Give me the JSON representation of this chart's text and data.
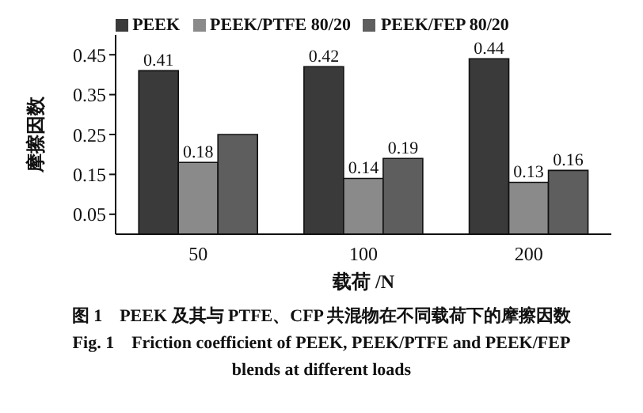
{
  "chart_data": {
    "type": "bar",
    "xlabel": "载荷 /N",
    "ylabel": "摩擦因数",
    "categories": [
      "50",
      "100",
      "200"
    ],
    "series": [
      {
        "name": "PEEK",
        "color": "#3a3a3a",
        "values": [
          0.41,
          0.42,
          0.44
        ],
        "value_labels": [
          "0.41",
          "0.42",
          "0.44"
        ]
      },
      {
        "name": "PEEK/PTFE 80/20",
        "color": "#8a8a8a",
        "values": [
          0.18,
          0.14,
          0.13
        ],
        "value_labels": [
          "0.18",
          "0.14",
          "0.13"
        ]
      },
      {
        "name": "PEEK/FEP 80/20",
        "color": "#5e5e5e",
        "values": [
          0.25,
          0.19,
          0.16
        ],
        "value_labels": [
          null,
          "0.19",
          "0.16"
        ]
      }
    ],
    "ylim": [
      0,
      0.5
    ],
    "yticks": [
      0.05,
      0.15,
      0.25,
      0.35,
      0.45
    ],
    "grid": false,
    "legend": "top",
    "annotations": [
      "图 1　PEEK 及其与 PTFE、CFP 共混物在不同载荷下的摩擦因数",
      "Fig. 1　Friction coefficient of PEEK, PEEK/PTFE and PEEK/FEP",
      "blends at different loads"
    ]
  }
}
